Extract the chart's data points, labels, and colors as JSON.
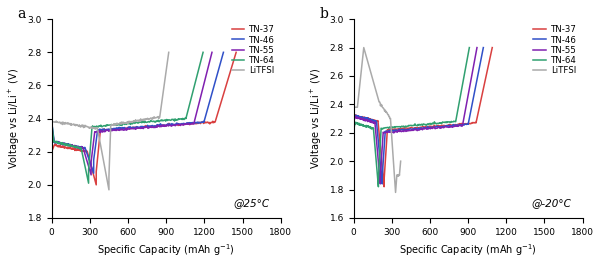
{
  "colors": {
    "TN-37": "#d94040",
    "TN-46": "#3050c8",
    "TN-55": "#8020b0",
    "TN-64": "#30a070",
    "LiTFSI": "#aaaaaa"
  },
  "legend_labels": [
    "TN-37",
    "TN-46",
    "TN-55",
    "TN-64",
    "LiTFSI"
  ],
  "ylabel": "Voltage vs Li/Li$^+$ (V)",
  "xlabel": "Specific Capacity (mAh g$^{-1}$)",
  "panel_a_label": "@25°C",
  "panel_b_label": "@-20°C",
  "panel_a_letter": "a",
  "panel_b_letter": "b",
  "panel_a_ylim": [
    1.8,
    3.0
  ],
  "panel_b_ylim": [
    1.6,
    3.0
  ],
  "xlim": [
    0,
    1800
  ],
  "xticks": [
    0,
    300,
    600,
    900,
    1200,
    1500,
    1800
  ]
}
